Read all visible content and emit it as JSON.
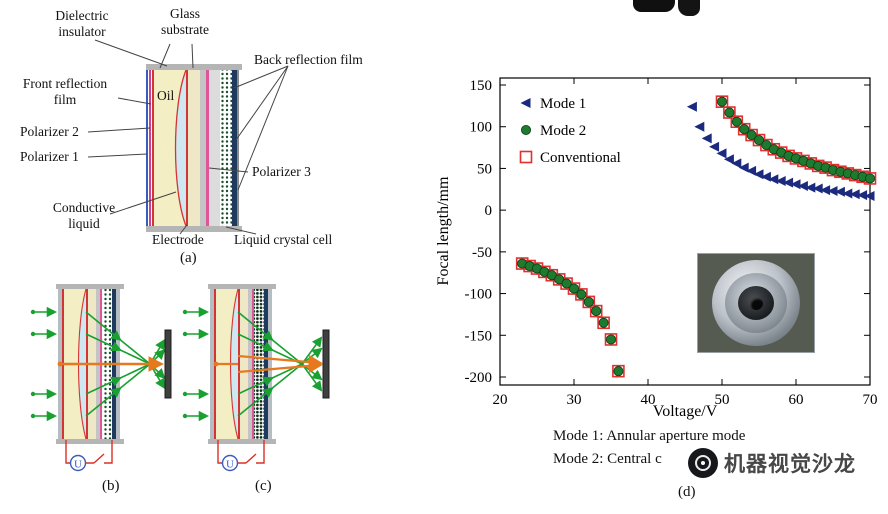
{
  "panel_a": {
    "labels": {
      "dielectric_insulator": "Dielectric\ninsulator",
      "glass_substrate": "Glass\nsubstrate",
      "back_reflection_film": "Back reflection film",
      "front_reflection_film": "Front reflection\nfilm",
      "polarizer_2": "Polarizer 2",
      "polarizer_1": "Polarizer 1",
      "oil": "Oil",
      "polarizer_3": "Polarizer 3",
      "conductive_liquid": "Conductive\nliquid",
      "electrode": "Electrode",
      "liquid_crystal_cell": "Liquid crystal cell",
      "tag": "(a)"
    }
  },
  "panel_b": {
    "tag": "(b)",
    "source_label": "U"
  },
  "panel_c": {
    "tag": "(c)",
    "source_label": "U"
  },
  "panel_d": {
    "tag": "(d)",
    "caption_line1": "Mode 1: Annular aperture mode",
    "caption_line2": "Mode 2: Central c"
  },
  "watermark": {
    "text": "机器视觉沙龙"
  },
  "colors": {
    "mode1": "#1b2a7e",
    "mode2": "#1e7a2e",
    "conventional": "#e03030",
    "ray_green": "#18a030",
    "ray_orange": "#e6781e",
    "wire_red": "#d93025",
    "liquid_blue": "#cfe7f0",
    "glass_cream": "#f4eec4"
  },
  "chart_data": {
    "type": "scatter",
    "title": "",
    "xlabel": "Voltage/V",
    "ylabel": "Focal length/mm",
    "xlim": [
      20,
      70
    ],
    "ylim": [
      -200,
      150
    ],
    "xticks": [
      20,
      30,
      40,
      50,
      60,
      70
    ],
    "yticks": [
      150,
      100,
      50,
      0,
      -50,
      -100,
      -150,
      -200
    ],
    "grid": false,
    "legend_position": "top-left",
    "series": [
      {
        "name": "Mode 1",
        "marker": "triangle-left",
        "color": "#1b2a7e",
        "points": [
          [
            46,
            124
          ],
          [
            47,
            100
          ],
          [
            48,
            86
          ],
          [
            49,
            76
          ],
          [
            50,
            68
          ],
          [
            51,
            61
          ],
          [
            52,
            56
          ],
          [
            53,
            51
          ],
          [
            54,
            47
          ],
          [
            55,
            43
          ],
          [
            56,
            40
          ],
          [
            57,
            37
          ],
          [
            58,
            35
          ],
          [
            59,
            33
          ],
          [
            60,
            31
          ],
          [
            61,
            29
          ],
          [
            62,
            27
          ],
          [
            63,
            26
          ],
          [
            64,
            24
          ],
          [
            65,
            23
          ],
          [
            66,
            22
          ],
          [
            67,
            20
          ],
          [
            68,
            19
          ],
          [
            69,
            18
          ],
          [
            70,
            17
          ]
        ]
      },
      {
        "name": "Mode 2",
        "marker": "circle",
        "color": "#1e7a2e",
        "points": [
          [
            23,
            -64
          ],
          [
            24,
            -67
          ],
          [
            25,
            -70
          ],
          [
            26,
            -74
          ],
          [
            27,
            -78
          ],
          [
            28,
            -83
          ],
          [
            29,
            -88
          ],
          [
            30,
            -94
          ],
          [
            31,
            -101
          ],
          [
            32,
            -110
          ],
          [
            33,
            -121
          ],
          [
            34,
            -135
          ],
          [
            35,
            -155
          ],
          [
            36,
            -193
          ],
          [
            50,
            130
          ],
          [
            51,
            117
          ],
          [
            52,
            106
          ],
          [
            53,
            97
          ],
          [
            54,
            90
          ],
          [
            55,
            84
          ],
          [
            56,
            78
          ],
          [
            57,
            73
          ],
          [
            58,
            69
          ],
          [
            59,
            65
          ],
          [
            60,
            62
          ],
          [
            61,
            59
          ],
          [
            62,
            56
          ],
          [
            63,
            53
          ],
          [
            64,
            51
          ],
          [
            65,
            48
          ],
          [
            66,
            46
          ],
          [
            67,
            44
          ],
          [
            68,
            42
          ],
          [
            69,
            40
          ],
          [
            70,
            38
          ]
        ]
      },
      {
        "name": "Conventional",
        "marker": "square-open",
        "color": "#e03030",
        "points": [
          [
            23,
            -64
          ],
          [
            24,
            -67
          ],
          [
            25,
            -70
          ],
          [
            26,
            -74
          ],
          [
            27,
            -78
          ],
          [
            28,
            -83
          ],
          [
            29,
            -88
          ],
          [
            30,
            -94
          ],
          [
            31,
            -101
          ],
          [
            32,
            -110
          ],
          [
            33,
            -121
          ],
          [
            34,
            -135
          ],
          [
            35,
            -155
          ],
          [
            36,
            -193
          ],
          [
            50,
            130
          ],
          [
            51,
            117
          ],
          [
            52,
            106
          ],
          [
            53,
            97
          ],
          [
            54,
            90
          ],
          [
            55,
            84
          ],
          [
            56,
            78
          ],
          [
            57,
            73
          ],
          [
            58,
            69
          ],
          [
            59,
            65
          ],
          [
            60,
            62
          ],
          [
            61,
            59
          ],
          [
            62,
            56
          ],
          [
            63,
            53
          ],
          [
            64,
            51
          ],
          [
            65,
            48
          ],
          [
            66,
            46
          ],
          [
            67,
            44
          ],
          [
            68,
            42
          ],
          [
            69,
            40
          ],
          [
            70,
            38
          ]
        ]
      }
    ]
  }
}
